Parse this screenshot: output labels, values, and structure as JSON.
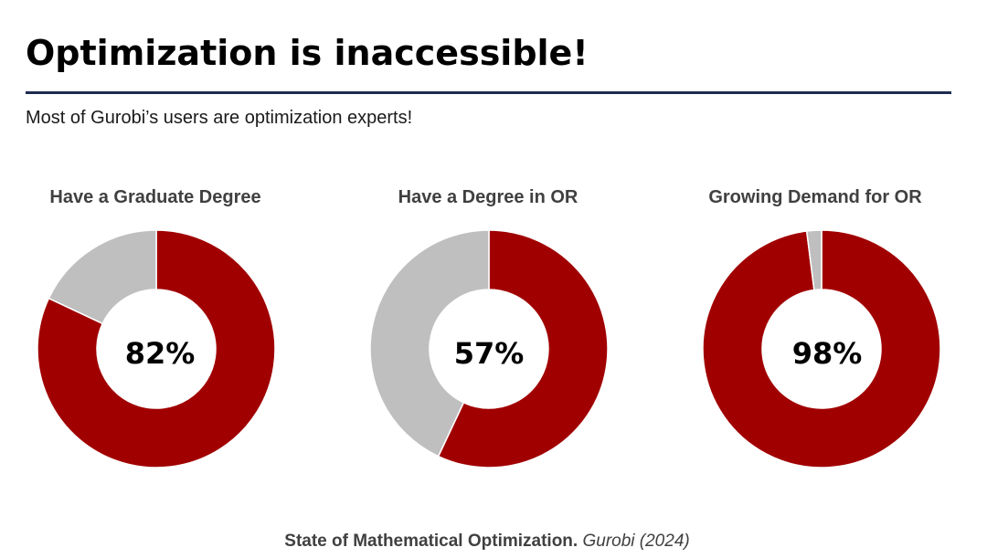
{
  "slide": {
    "title": "Optimization is inaccessible!",
    "subtitle": "Most of Gurobi’s users are optimization experts!"
  },
  "source": {
    "main": "State of Mathematical Optimization.",
    "italic": "Gurobi (2024)"
  },
  "colors": {
    "primary": "#a10000",
    "remainder": "#bfbfbf",
    "rule": "#1d2b4f"
  },
  "chart_data": [
    {
      "type": "pie",
      "title": "Have a Graduate Degree",
      "center_label": "82%",
      "values": [
        82,
        18
      ]
    },
    {
      "type": "pie",
      "title": "Have a Degree in OR",
      "center_label": "57%",
      "values": [
        57,
        43
      ]
    },
    {
      "type": "pie",
      "title": "Growing Demand for OR",
      "center_label": "98%",
      "values": [
        98,
        2
      ]
    }
  ]
}
